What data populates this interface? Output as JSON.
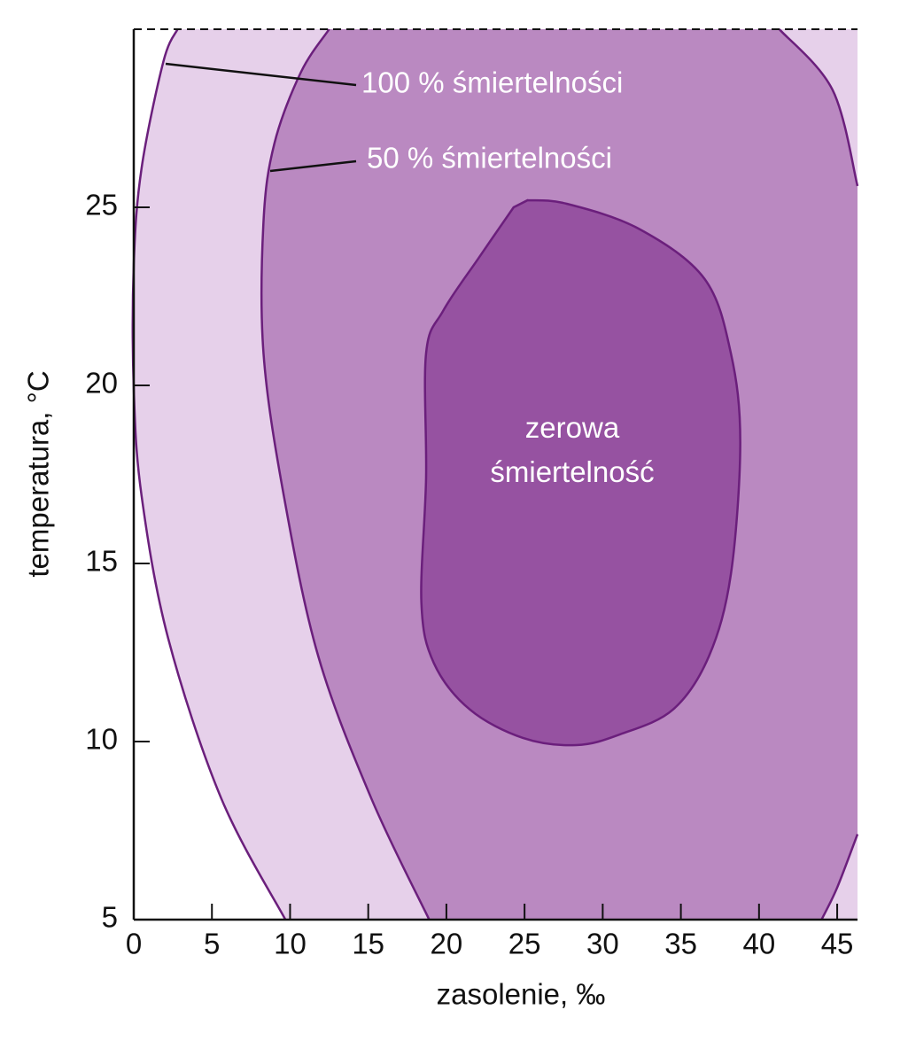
{
  "chart_data": {
    "type": "region",
    "x_label": "zasolenie, ‰",
    "y_label": "temperatura, °C",
    "xlim": [
      0,
      46.3
    ],
    "ylim": [
      5,
      30
    ],
    "xticks": [
      0,
      5,
      10,
      15,
      20,
      25,
      30,
      35,
      40,
      45
    ],
    "yticks": [
      5,
      10,
      15,
      20,
      25
    ],
    "line_color": "#6b1f7c",
    "series": [
      {
        "name": "100 % śmiertelności",
        "color": "#e6d0ea",
        "x": [
          9.7,
          5.6,
          2.2,
          0.5,
          0,
          0,
          0.5,
          1.9,
          2.8
        ],
        "y": [
          5,
          8.4,
          12.9,
          16.9,
          19.9,
          23.4,
          26.1,
          29.1,
          30
        ]
      },
      {
        "name": "50 % śmiertelności",
        "color": "#ba89c1",
        "x": [
          18.9,
          15.2,
          11.8,
          9.6,
          8.3,
          8.3,
          9.0,
          10.7,
          12.5,
          null,
          41.3,
          44.7,
          46.3,
          null,
          46.3,
          45,
          44
        ],
        "y": [
          5,
          8.4,
          12.4,
          16.9,
          20.9,
          24.6,
          26.8,
          28.8,
          30,
          null,
          30,
          28.3,
          25.6,
          null,
          7.4,
          5.9,
          5
        ]
      },
      {
        "name": "zerowa śmiertelność",
        "color": "#9652a1",
        "x": [
          25.2,
          27.7,
          32.3,
          36.5,
          38.2,
          38.8,
          38.2,
          36.8,
          34.5,
          31.1,
          28.3,
          24.9,
          21.5,
          19.2,
          18.4,
          18.7,
          18.7,
          19.8,
          22.1,
          24.3
        ],
        "y": [
          25.2,
          25.1,
          24.4,
          23,
          20.9,
          18.4,
          14.7,
          12.4,
          10.9,
          10.2,
          9.9,
          10.1,
          10.9,
          12.2,
          13.9,
          17.4,
          20.9,
          22.1,
          23.6,
          25
        ]
      }
    ]
  }
}
